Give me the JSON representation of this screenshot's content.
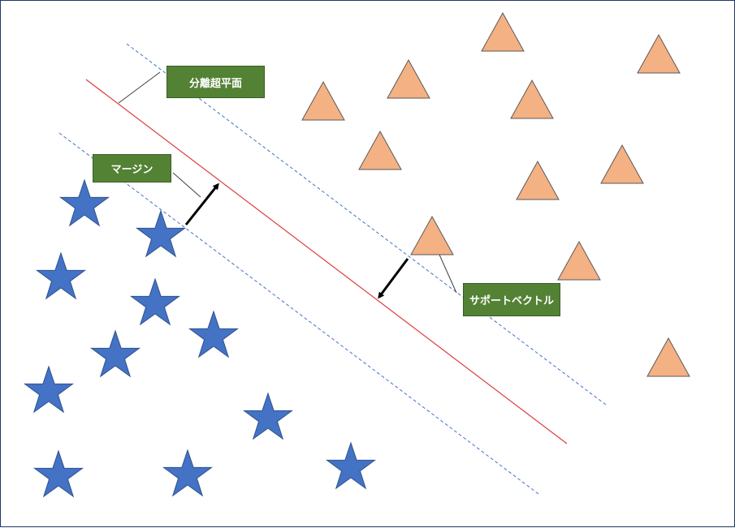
{
  "labels": {
    "hyperplane": "分離超平面",
    "margin": "マージン",
    "support_vector": "サポートベクトル"
  },
  "classes": [
    {
      "shape": "star-icon",
      "color": "#4472c4",
      "stroke": "#2f528f"
    },
    {
      "shape": "triangle-icon",
      "color": "#f4b183",
      "stroke": "#595959"
    }
  ],
  "lines": {
    "hyperplane_color": "#e03c3c",
    "margin_color": "#4472c4",
    "arrow_color": "#000000"
  },
  "label_box_color": "#548235"
}
